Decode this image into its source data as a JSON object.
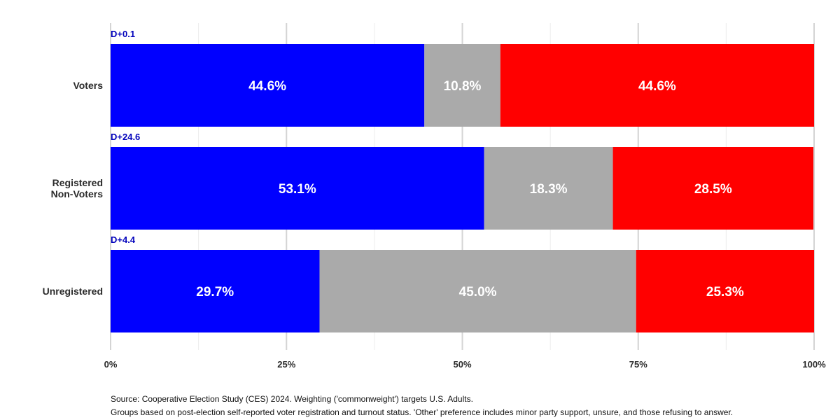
{
  "chart_data": {
    "type": "bar",
    "orientation": "horizontal",
    "stacked": true,
    "categories": [
      "Voters",
      "Registered\nNon-Voters",
      "Unregistered"
    ],
    "series": [
      {
        "values": [
          44.6,
          53.1,
          29.7
        ],
        "color": "#0000ff"
      },
      {
        "values": [
          10.8,
          18.3,
          45.0
        ],
        "color": "#aaaaaa"
      },
      {
        "values": [
          44.6,
          28.5,
          25.3
        ],
        "color": "#ff0000"
      }
    ],
    "data_labels": [
      [
        "44.6%",
        "10.8%",
        "44.6%"
      ],
      [
        "53.1%",
        "18.3%",
        "28.5%"
      ],
      [
        "29.7%",
        "45.0%",
        "25.3%"
      ]
    ],
    "margins": [
      "D+0.1",
      "D+24.6",
      "D+4.4"
    ],
    "margin_color": "#0000bb",
    "xlim": [
      0,
      100
    ],
    "x_ticks": [
      0,
      25,
      50,
      75,
      100
    ],
    "x_tick_labels": [
      "0%",
      "25%",
      "50%",
      "75%",
      "100%"
    ],
    "grid": true,
    "legend": "none",
    "title": "",
    "xlabel": "",
    "ylabel": ""
  },
  "footer": {
    "source": "Source: Cooperative Election Study (CES) 2024. Weighting ('commonweight') targets U.S. Adults.",
    "note": "Groups based on post-election self-reported voter registration and turnout status. 'Other' preference includes minor party support, unsure, and those refusing to answer."
  }
}
